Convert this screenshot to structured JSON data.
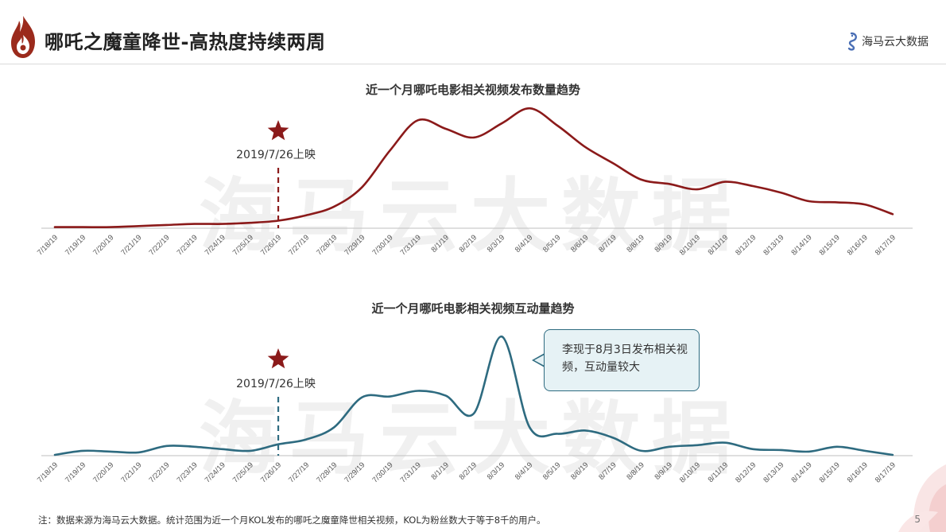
{
  "header": {
    "title": "哪吒之魔童降世-高热度持续两周",
    "brand": "海马云大数据"
  },
  "watermark": "海马云大数据",
  "colors": {
    "top_series": "#8b1a1a",
    "bottom_series": "#2e6b80",
    "star": "#8b1a1a",
    "axis": "#bfbfbf"
  },
  "chart_data": [
    {
      "type": "line",
      "title": "近一个月哪吒电影相关视频发布数量趋势",
      "categories": [
        "7/18/19",
        "7/19/19",
        "7/20/19",
        "7/21/19",
        "7/22/19",
        "7/23/19",
        "7/24/19",
        "7/25/19",
        "7/26/19",
        "7/27/19",
        "7/28/19",
        "7/29/19",
        "7/30/19",
        "7/31/19",
        "8/1/19",
        "8/2/19",
        "8/3/19",
        "8/4/19",
        "8/5/19",
        "8/6/19",
        "8/7/19",
        "8/8/19",
        "8/9/19",
        "8/10/19",
        "8/11/19",
        "8/12/19",
        "8/13/19",
        "8/14/19",
        "8/15/19",
        "8/16/19",
        "8/17/19"
      ],
      "series": [
        {
          "values": [
            1,
            1,
            1,
            2,
            3,
            4,
            4,
            5,
            7,
            12,
            20,
            38,
            72,
            100,
            92,
            84,
            97,
            111,
            95,
            75,
            60,
            45,
            41,
            36,
            43,
            39,
            33,
            25,
            24,
            22,
            13
          ]
        }
      ],
      "ylim": [
        0,
        120
      ],
      "annotation": {
        "category": "7/26/19",
        "label": "2019/7/26上映"
      }
    },
    {
      "type": "line",
      "title": "近一个月哪吒电影相关视频互动量趋势",
      "categories": [
        "7/18/19",
        "7/19/19",
        "7/20/19",
        "7/21/19",
        "7/22/19",
        "7/23/19",
        "7/24/19",
        "7/25/19",
        "7/26/19",
        "7/27/19",
        "7/28/19",
        "7/29/19",
        "7/30/19",
        "7/31/19",
        "8/1/19",
        "8/2/19",
        "8/3/19",
        "8/4/19",
        "8/5/19",
        "8/6/19",
        "8/7/19",
        "8/8/19",
        "8/9/19",
        "8/10/19",
        "8/11/19",
        "8/12/19",
        "8/13/19",
        "8/14/19",
        "8/15/19",
        "8/16/19",
        "8/17/19"
      ],
      "series": [
        {
          "values": [
            1,
            6,
            5,
            4,
            12,
            11,
            8,
            6,
            14,
            20,
            35,
            72,
            73,
            80,
            74,
            52,
            147,
            35,
            27,
            31,
            22,
            6,
            11,
            13,
            16,
            8,
            7,
            5,
            11,
            6,
            1
          ]
        }
      ],
      "ylim": [
        0,
        160
      ],
      "annotation": {
        "category": "7/26/19",
        "label": "2019/7/26上映"
      },
      "callout": "李现于8月3日发布相关视频，互动量较大"
    }
  ],
  "footer": {
    "note": "注：数据来源为海马云大数据。统计范围为近一个月KOL发布的哪吒之魔童降世相关视频，KOL为粉丝数大于等于8千的用户。",
    "page": "5"
  }
}
